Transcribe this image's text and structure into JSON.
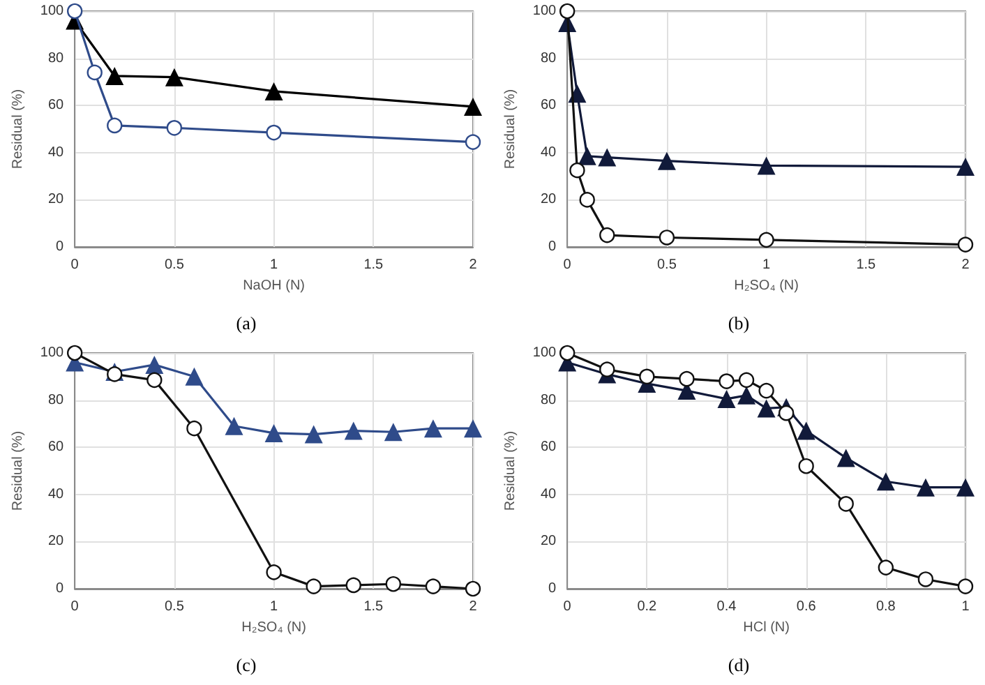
{
  "chart_data": [
    {
      "type": "line",
      "title": "(a)",
      "xlabel": "NaOH (N)",
      "ylabel": "Residual (%)",
      "xlim": [
        0,
        2
      ],
      "xticks": [
        0,
        0.5,
        1,
        1.5,
        2
      ],
      "ylim": [
        0,
        100
      ],
      "yticks": [
        0,
        20,
        40,
        60,
        80,
        100
      ],
      "grid": true,
      "series": [
        {
          "color": "#000000",
          "marker": "triangle",
          "x": [
            0,
            0.2,
            0.5,
            1,
            2
          ],
          "values": [
            96,
            72.5,
            72,
            66,
            59.5
          ]
        },
        {
          "color": "#2f4b8a",
          "marker": "circle",
          "x": [
            0,
            0.1,
            0.2,
            0.5,
            1,
            2
          ],
          "values": [
            100,
            74,
            51.5,
            50.5,
            48.5,
            44.5
          ]
        }
      ]
    },
    {
      "type": "line",
      "title": "(b)",
      "xlabel": "H₂SO₄ (N)",
      "ylabel": "Residual (%)",
      "xlim": [
        0,
        2
      ],
      "xticks": [
        0,
        0.5,
        1,
        1.5,
        2
      ],
      "ylim": [
        0,
        100
      ],
      "yticks": [
        0,
        20,
        40,
        60,
        80,
        100
      ],
      "grid": true,
      "series": [
        {
          "color": "#111a3a",
          "marker": "triangle",
          "x": [
            0,
            0.05,
            0.1,
            0.2,
            0.5,
            1,
            2
          ],
          "values": [
            95,
            65,
            38.5,
            38,
            36.5,
            34.5,
            34
          ]
        },
        {
          "color": "#111111",
          "marker": "circle",
          "x": [
            0,
            0.05,
            0.1,
            0.2,
            0.5,
            1,
            2
          ],
          "values": [
            100,
            32.5,
            20,
            5,
            4,
            3,
            1
          ]
        }
      ]
    },
    {
      "type": "line",
      "title": "(c)",
      "xlabel": "H₂SO₄ (N)",
      "ylabel": "Residual (%)",
      "xlim": [
        0,
        2
      ],
      "xticks": [
        0,
        0.5,
        1,
        1.5,
        2
      ],
      "ylim": [
        0,
        100
      ],
      "yticks": [
        0,
        20,
        40,
        60,
        80,
        100
      ],
      "grid": true,
      "series": [
        {
          "color": "#2f4b8a",
          "marker": "triangle",
          "x": [
            0,
            0.2,
            0.4,
            0.6,
            0.8,
            1,
            1.2,
            1.4,
            1.6,
            1.8,
            2
          ],
          "values": [
            96,
            92,
            95,
            90,
            69,
            66,
            65.5,
            67,
            66.5,
            68,
            68
          ]
        },
        {
          "color": "#111111",
          "marker": "circle",
          "x": [
            0,
            0.2,
            0.4,
            0.6,
            1,
            1.2,
            1.4,
            1.6,
            1.8,
            2
          ],
          "values": [
            100,
            91,
            88.5,
            68,
            7,
            1,
            1.5,
            2,
            1,
            0
          ]
        }
      ]
    },
    {
      "type": "line",
      "title": "(d)",
      "xlabel": "HCl (N)",
      "ylabel": "Residual (%)",
      "xlim": [
        0,
        1
      ],
      "xticks": [
        0,
        0.2,
        0.4,
        0.6,
        0.8,
        1
      ],
      "ylim": [
        0,
        100
      ],
      "yticks": [
        0,
        20,
        40,
        60,
        80,
        100
      ],
      "grid": true,
      "series": [
        {
          "color": "#111a3a",
          "marker": "triangle",
          "x": [
            0,
            0.1,
            0.2,
            0.3,
            0.4,
            0.45,
            0.5,
            0.55,
            0.6,
            0.7,
            0.8,
            0.9,
            1
          ],
          "values": [
            96,
            91,
            87,
            84,
            80.5,
            82,
            76.5,
            77,
            67,
            55.5,
            45.5,
            43,
            43
          ]
        },
        {
          "color": "#111111",
          "marker": "circle",
          "x": [
            0,
            0.1,
            0.2,
            0.3,
            0.4,
            0.45,
            0.5,
            0.55,
            0.6,
            0.7,
            0.8,
            0.9,
            1
          ],
          "values": [
            100,
            93,
            90,
            89,
            88,
            88.5,
            84,
            74.5,
            52,
            36,
            9,
            4,
            1
          ]
        }
      ]
    }
  ]
}
